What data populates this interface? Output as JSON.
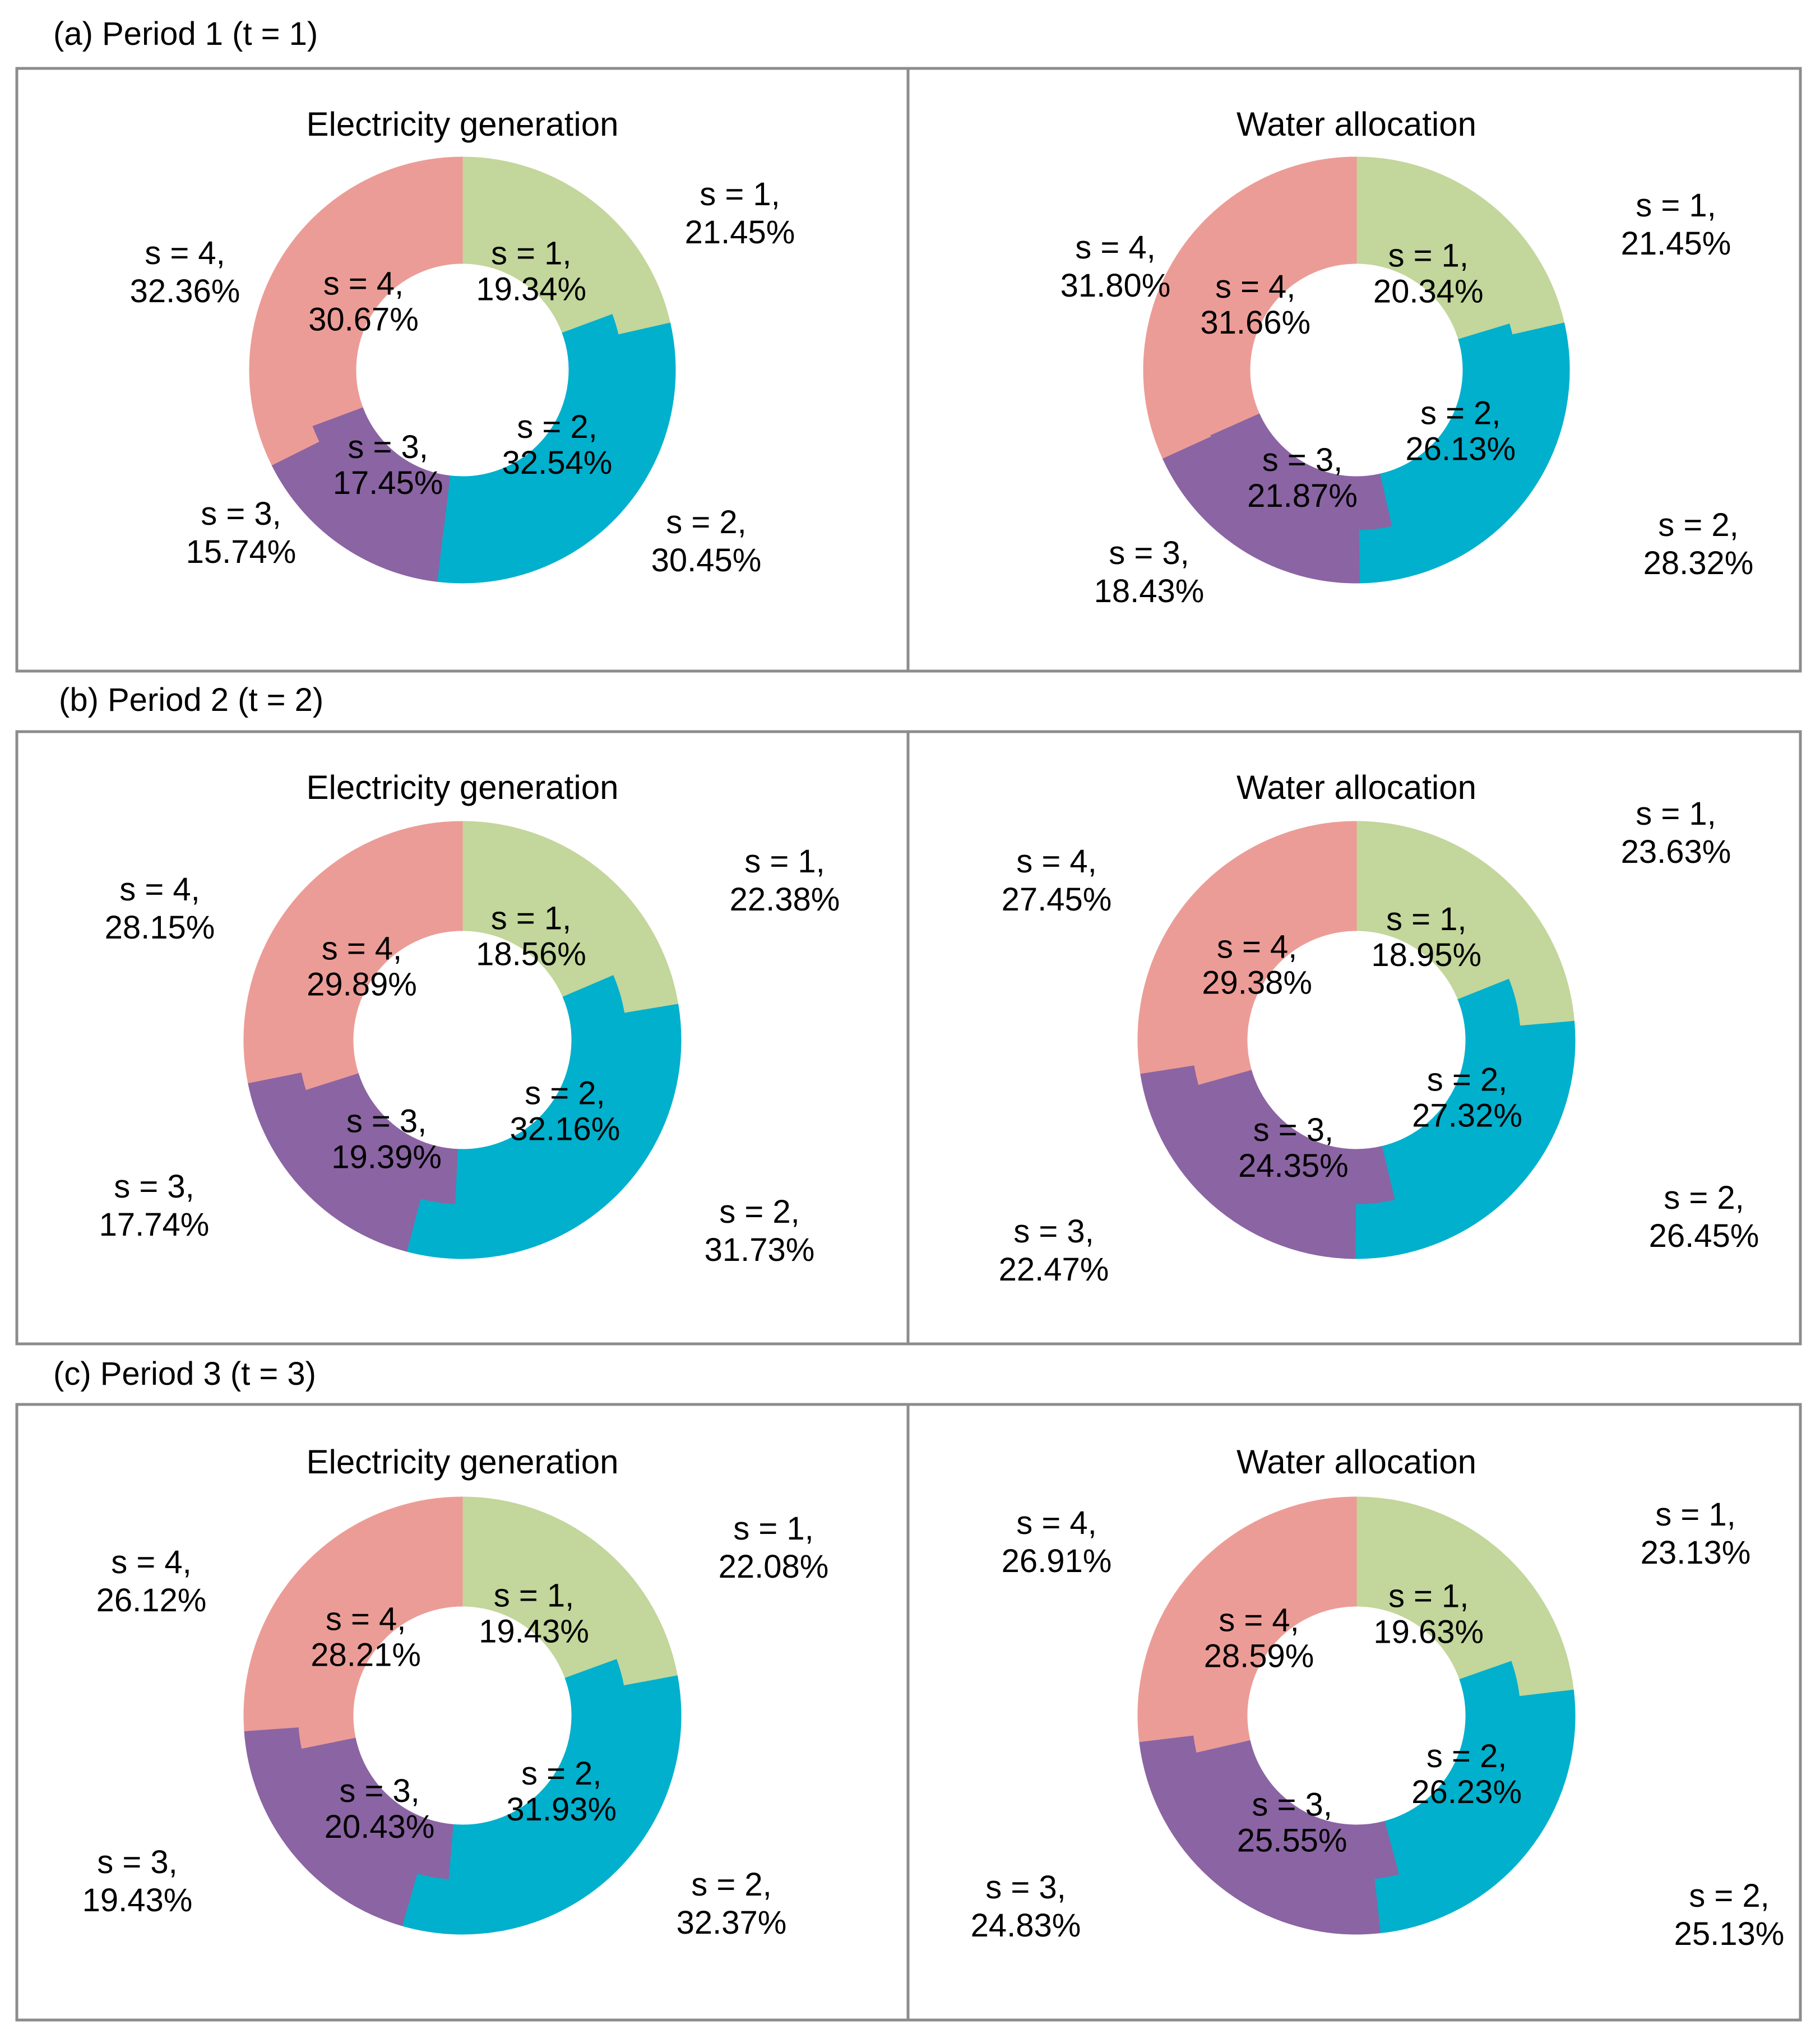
{
  "colors": {
    "s1": "#C3D69B",
    "s2": "#00B0CC",
    "s3": "#8B64A3",
    "s4": "#EC9C96",
    "frame": "#8C8C8C"
  },
  "panels": [
    {
      "heading": "(a) Period 1 (t = 1)"
    },
    {
      "heading": "(b) Period 2 (t = 2)"
    },
    {
      "heading": "(c) Period 3 (t = 3)"
    }
  ],
  "chart_data": [
    {
      "type": "pie",
      "panel": "(a) Period 1 (t = 1)",
      "title": "Electricity generation",
      "categories": [
        "s = 1",
        "s = 2",
        "s = 3",
        "s = 4"
      ],
      "series": [
        {
          "ring": "outer",
          "values": [
            21.45,
            30.45,
            15.74,
            32.36
          ],
          "labels": [
            "s = 1,\n21.45%",
            "s = 2,\n30.45%",
            "s = 3,\n15.74%",
            "s = 4,\n32.36%"
          ]
        },
        {
          "ring": "inner",
          "values": [
            19.34,
            32.54,
            17.45,
            30.67
          ],
          "labels": [
            "s = 1,\n19.34%",
            "s = 2,\n32.54%",
            "s = 3,\n17.45%",
            "s = 4,\n30.67%"
          ]
        }
      ]
    },
    {
      "type": "pie",
      "panel": "(a) Period 1 (t = 1)",
      "title": "Water allocation",
      "categories": [
        "s = 1",
        "s = 2",
        "s = 3",
        "s = 4"
      ],
      "series": [
        {
          "ring": "outer",
          "values": [
            21.45,
            28.32,
            18.43,
            31.8
          ],
          "labels": [
            "s = 1,\n21.45%",
            "s = 2,\n28.32%",
            "s = 3,\n18.43%",
            "s = 4,\n31.80%"
          ]
        },
        {
          "ring": "inner",
          "values": [
            20.34,
            26.13,
            21.87,
            31.66
          ],
          "labels": [
            "s = 1,\n20.34%",
            "s = 2,\n26.13%",
            "s = 3,\n21.87%",
            "s = 4,\n31.66%"
          ]
        }
      ]
    },
    {
      "type": "pie",
      "panel": "(b) Period 2 (t = 2)",
      "title": "Electricity generation",
      "categories": [
        "s = 1",
        "s = 2",
        "s = 3",
        "s = 4"
      ],
      "series": [
        {
          "ring": "outer",
          "values": [
            22.38,
            31.73,
            17.74,
            28.15
          ],
          "labels": [
            "s = 1,\n22.38%",
            "s = 2,\n31.73%",
            "s = 3,\n17.74%",
            "s = 4,\n28.15%"
          ]
        },
        {
          "ring": "inner",
          "values": [
            18.56,
            32.16,
            19.39,
            29.89
          ],
          "labels": [
            "s = 1,\n18.56%",
            "s = 2,\n32.16%",
            "s = 3,\n19.39%",
            "s = 4,\n29.89%"
          ]
        }
      ]
    },
    {
      "type": "pie",
      "panel": "(b) Period 2 (t = 2)",
      "title": "Water allocation",
      "categories": [
        "s = 1",
        "s = 2",
        "s = 3",
        "s = 4"
      ],
      "series": [
        {
          "ring": "outer",
          "values": [
            23.63,
            26.45,
            22.47,
            27.45
          ],
          "labels": [
            "s = 1,\n23.63%",
            "s = 2,\n26.45%",
            "s = 3,\n22.47%",
            "s = 4,\n27.45%"
          ]
        },
        {
          "ring": "inner",
          "values": [
            18.95,
            27.32,
            24.35,
            29.38
          ],
          "labels": [
            "s = 1,\n18.95%",
            "s = 2,\n27.32%",
            "s = 3,\n24.35%",
            "s = 4,\n29.38%"
          ]
        }
      ]
    },
    {
      "type": "pie",
      "panel": "(c) Period 3 (t = 3)",
      "title": "Electricity generation",
      "categories": [
        "s = 1",
        "s = 2",
        "s = 3",
        "s = 4"
      ],
      "series": [
        {
          "ring": "outer",
          "values": [
            22.08,
            32.37,
            19.43,
            26.12
          ],
          "labels": [
            "s = 1,\n22.08%",
            "s = 2,\n32.37%",
            "s = 3,\n19.43%",
            "s = 4,\n26.12%"
          ]
        },
        {
          "ring": "inner",
          "values": [
            19.43,
            31.93,
            20.43,
            28.21
          ],
          "labels": [
            "s = 1,\n19.43%",
            "s = 2,\n31.93%",
            "s = 3,\n20.43%",
            "s = 4,\n28.21%"
          ]
        }
      ]
    },
    {
      "type": "pie",
      "panel": "(c) Period 3 (t = 3)",
      "title": "Water allocation",
      "categories": [
        "s = 1",
        "s = 2",
        "s = 3",
        "s = 4"
      ],
      "series": [
        {
          "ring": "outer",
          "values": [
            23.13,
            25.13,
            24.83,
            26.91
          ],
          "labels": [
            "s = 1,\n23.13%",
            "s = 2,\n25.13%",
            "s = 3,\n24.83%",
            "s = 4,\n26.91%"
          ]
        },
        {
          "ring": "inner",
          "values": [
            19.63,
            26.23,
            25.55,
            28.59
          ],
          "labels": [
            "s = 1,\n19.63%",
            "s = 2,\n26.23%",
            "s = 3,\n25.55%",
            "s = 4,\n28.59%"
          ]
        }
      ]
    }
  ]
}
